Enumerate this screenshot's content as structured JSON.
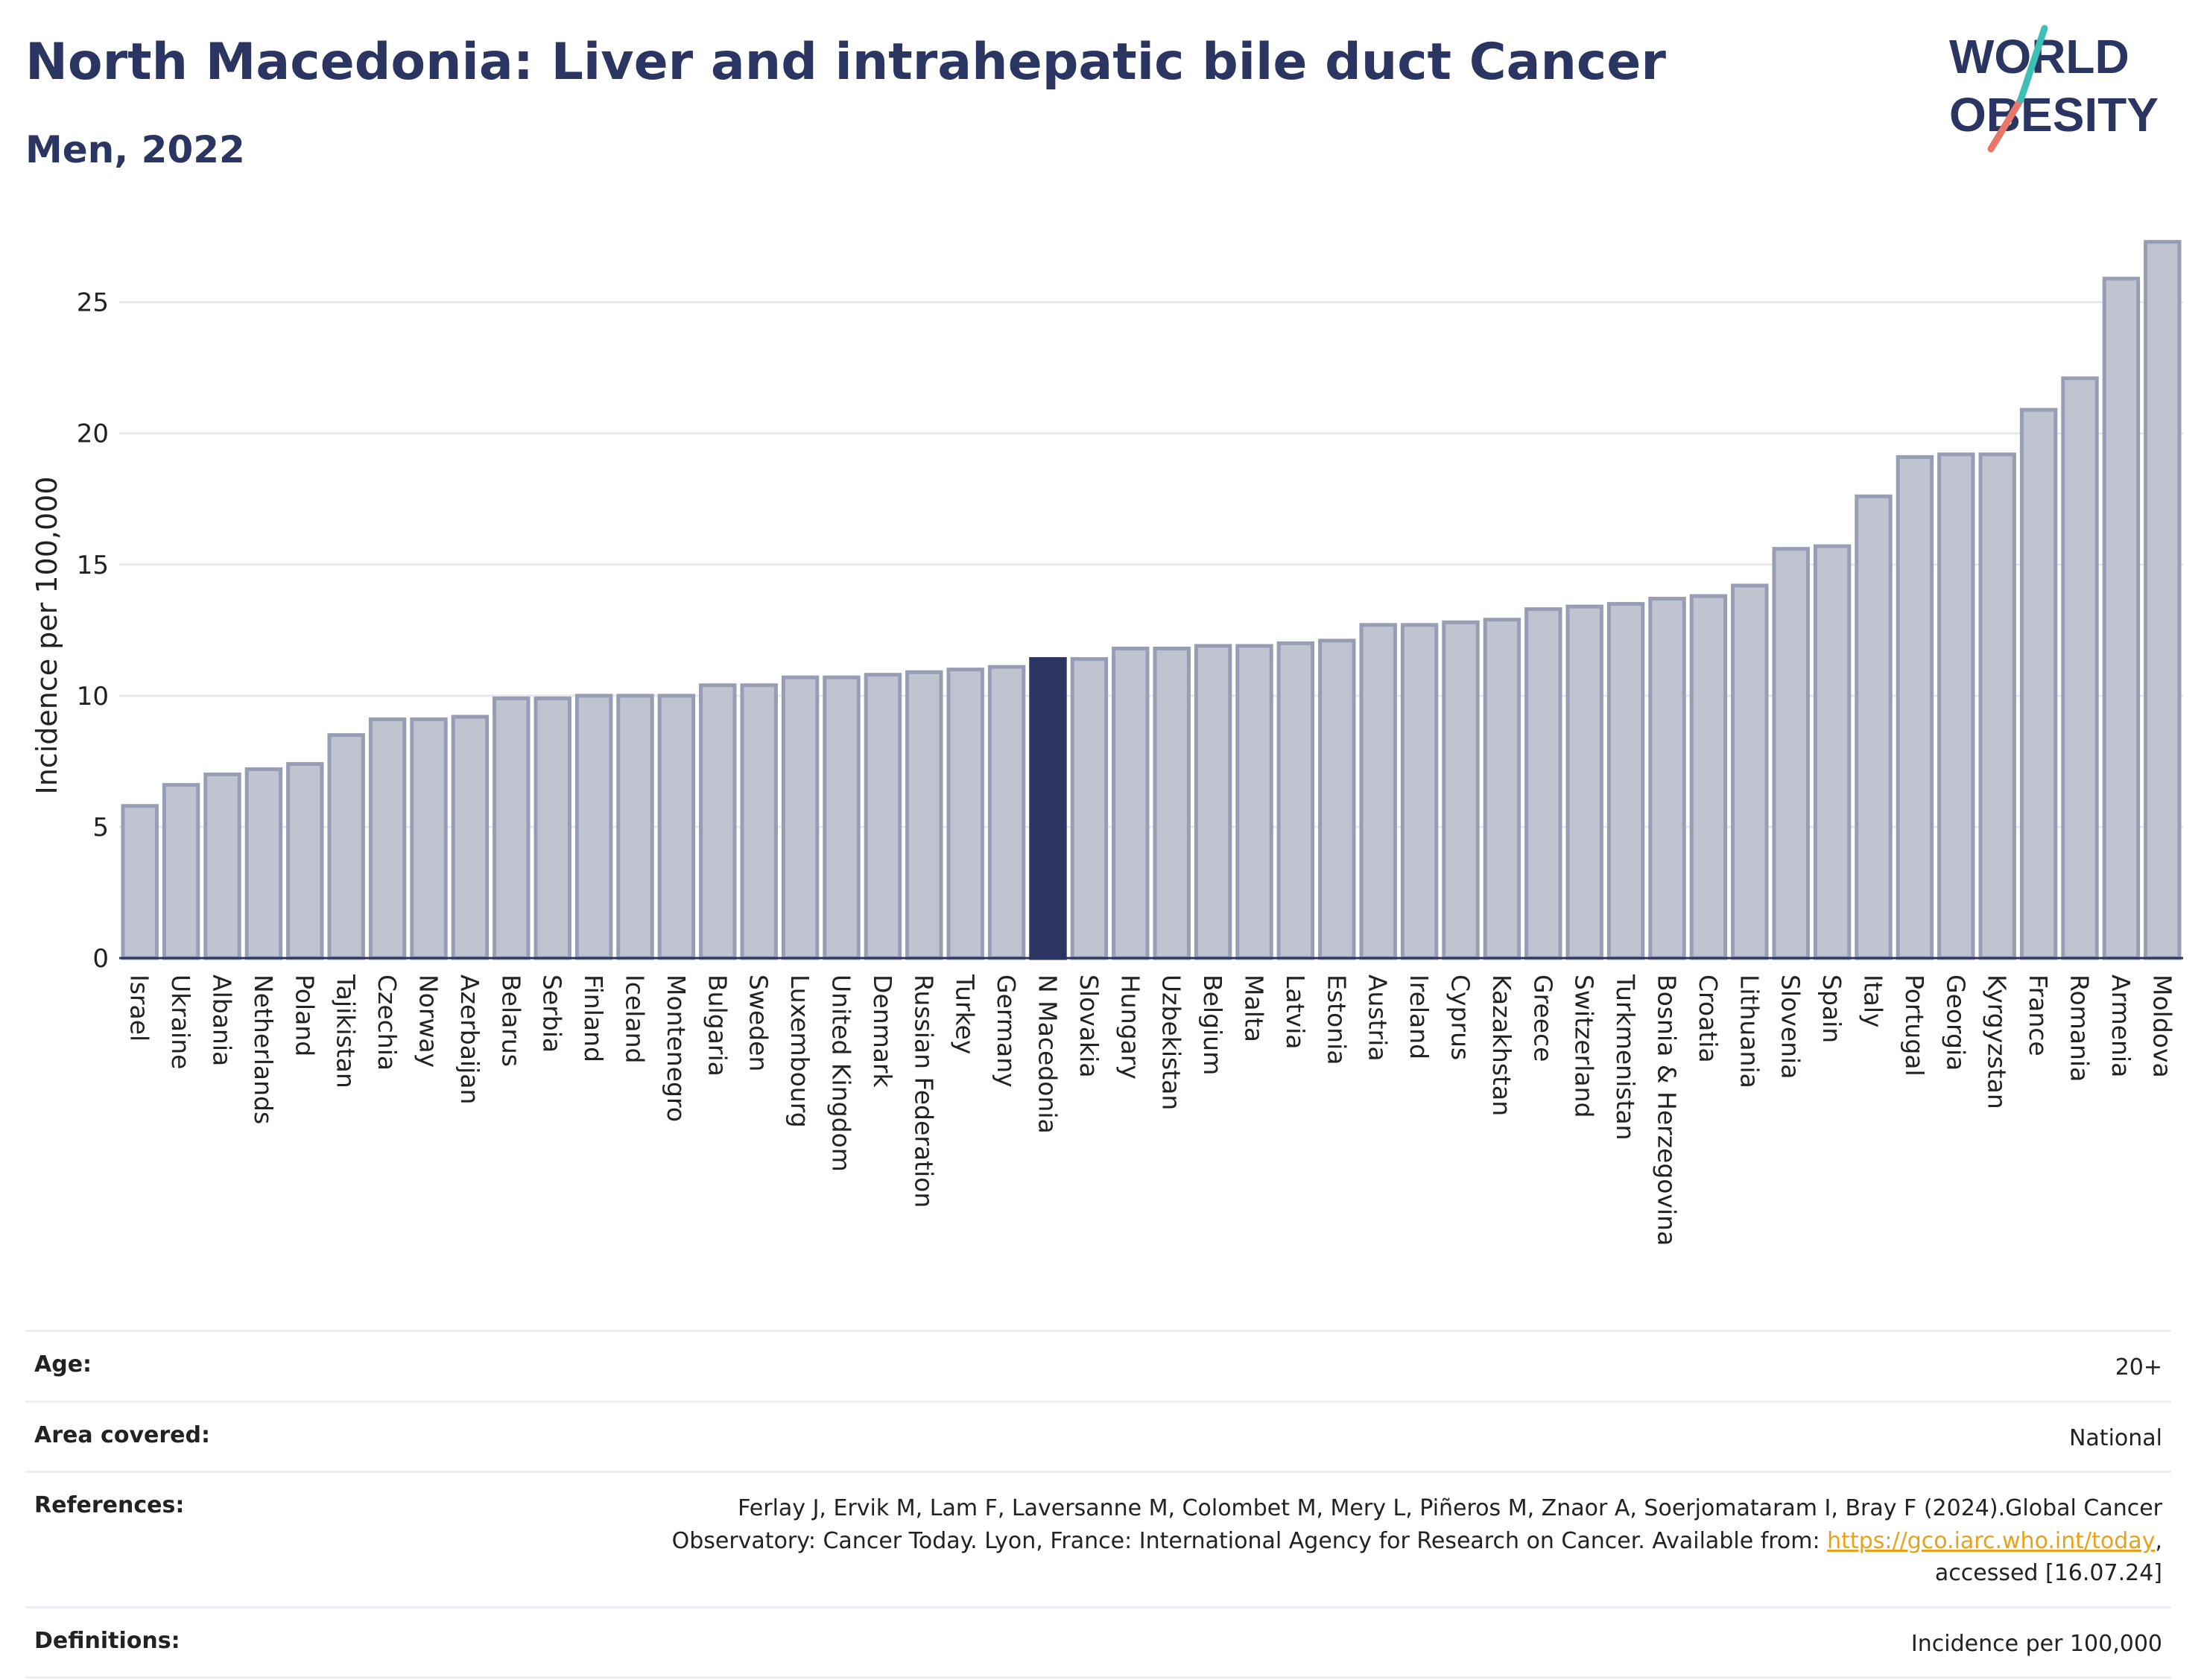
{
  "header": {
    "title": "North Macedonia: Liver and intrahepatic bile duct Cancer",
    "subtitle": "Men, 2022"
  },
  "logo": {
    "line1": "WORLD",
    "line2": "OBESITY"
  },
  "colors": {
    "bar": "#c0c4d1",
    "bar_stroke": "#979db4",
    "highlight": "#2b3561",
    "text": "#2b3561"
  },
  "chart_data": {
    "type": "bar",
    "title": "North Macedonia: Liver and intrahepatic bile duct Cancer",
    "subtitle": "Men, 2022",
    "xlabel": "",
    "ylabel": "Incidence per 100,000",
    "ylim": [
      0,
      28
    ],
    "yticks": [
      0,
      5,
      10,
      15,
      20,
      25
    ],
    "grid": true,
    "highlight": "N Macedonia",
    "categories": [
      "Israel",
      "Ukraine",
      "Albania",
      "Netherlands",
      "Poland",
      "Tajikistan",
      "Czechia",
      "Norway",
      "Azerbaijan",
      "Belarus",
      "Serbia",
      "Finland",
      "Iceland",
      "Montenegro",
      "Bulgaria",
      "Sweden",
      "Luxembourg",
      "United Kingdom",
      "Denmark",
      "Russian Federation",
      "Turkey",
      "Germany",
      "N Macedonia",
      "Slovakia",
      "Hungary",
      "Uzbekistan",
      "Belgium",
      "Malta",
      "Latvia",
      "Estonia",
      "Austria",
      "Ireland",
      "Cyprus",
      "Kazakhstan",
      "Greece",
      "Switzerland",
      "Turkmenistan",
      "Bosnia & Herzegovina",
      "Croatia",
      "Lithuania",
      "Slovenia",
      "Spain",
      "Italy",
      "Portugal",
      "Georgia",
      "Kyrgyzstan",
      "France",
      "Romania",
      "Armenia",
      "Moldova"
    ],
    "values": [
      5.8,
      6.6,
      7.0,
      7.2,
      7.4,
      8.5,
      9.1,
      9.1,
      9.2,
      9.9,
      9.9,
      10.0,
      10.0,
      10.0,
      10.4,
      10.4,
      10.7,
      10.7,
      10.8,
      10.9,
      11.0,
      11.1,
      11.4,
      11.4,
      11.8,
      11.8,
      11.9,
      11.9,
      12.0,
      12.1,
      12.7,
      12.7,
      12.8,
      12.9,
      13.3,
      13.4,
      13.5,
      13.7,
      13.8,
      14.2,
      15.6,
      15.7,
      17.6,
      19.1,
      19.2,
      19.2,
      20.9,
      22.1,
      25.9,
      27.3
    ]
  },
  "info": {
    "age_label": "Age:",
    "age_value": "20+",
    "area_label": "Area covered:",
    "area_value": "National",
    "references_label": "References:",
    "references_text_1": "Ferlay J, Ervik M, Lam F, Laversanne M, Colombet M, Mery L, Piñeros M, Znaor A, Soerjomataram I, Bray F (2024).Global Cancer",
    "references_text_2": "Observatory: Cancer Today. Lyon, France: International Agency for Research on Cancer. Available from: ",
    "references_link": "https://gco.iarc.who.int/today",
    "references_text_3": ",",
    "references_text_4": "accessed [16.07.24]",
    "definitions_label": "Definitions:",
    "definitions_value": "Incidence per 100,000"
  }
}
